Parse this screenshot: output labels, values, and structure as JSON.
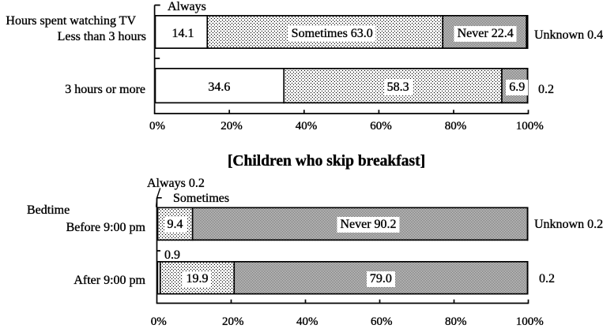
{
  "colors": {
    "ink": "#000000",
    "background": "#ffffff",
    "bar_fill": "#ffffff"
  },
  "series_names": [
    "Always",
    "Sometimes",
    "Never",
    "Unknown"
  ],
  "chart_data": [
    {
      "type": "bar",
      "subtype": "horizontal-100pct-stacked",
      "axis_title": "Hours spent watching TV",
      "categories": [
        "Less than 3 hours",
        "3 hours or more"
      ],
      "xlim": [
        0,
        100
      ],
      "x_tick_labels": [
        "0%",
        "20%",
        "40%",
        "60%",
        "80%",
        "100%"
      ],
      "grid": false,
      "series": [
        {
          "name": "Always",
          "pattern": "white",
          "values": [
            14.1,
            34.6
          ]
        },
        {
          "name": "Sometimes",
          "pattern": "dots-sparse",
          "values": [
            63.0,
            58.3
          ]
        },
        {
          "name": "Never",
          "pattern": "dots-dense",
          "values": [
            22.4,
            6.9
          ]
        },
        {
          "name": "Unknown",
          "pattern": "black",
          "values": [
            0.4,
            0.2
          ]
        }
      ],
      "segment_labels": [
        [
          {
            "seg": 0,
            "text": "14.1",
            "place": "inside",
            "dx": 2.5
          },
          {
            "seg": 1,
            "text": "Sometimes 63.0",
            "place": "inside",
            "dx": 9
          },
          {
            "seg": 2,
            "text": "Never 22.4",
            "place": "inside",
            "dx": 1
          },
          {
            "seg": 3,
            "text": "Unknown 0.4",
            "place": "right"
          }
        ],
        [
          {
            "seg": 0,
            "text": "34.6",
            "place": "inside"
          },
          {
            "seg": 1,
            "text": "58.3",
            "place": "inside",
            "dx": 6.5
          },
          {
            "seg": 2,
            "text": "6.9",
            "place": "inside",
            "dx": 3
          },
          {
            "seg": 3,
            "text": "0.2",
            "place": "right"
          }
        ]
      ],
      "callouts": [
        "Always"
      ]
    },
    {
      "type": "bar",
      "subtype": "horizontal-100pct-stacked",
      "title": "[Children who skip breakfast]",
      "axis_title": "Bedtime",
      "categories": [
        "Before 9:00 pm",
        "After 9:00 pm"
      ],
      "xlim": [
        0,
        100
      ],
      "x_tick_labels": [
        "0%",
        "20%",
        "40%",
        "60%",
        "80%",
        "100%"
      ],
      "grid": false,
      "series": [
        {
          "name": "Always",
          "pattern": "white",
          "values": [
            0.2,
            0.9
          ]
        },
        {
          "name": "Sometimes",
          "pattern": "dots-sparse",
          "values": [
            9.4,
            19.9
          ]
        },
        {
          "name": "Never",
          "pattern": "dots-dense",
          "values": [
            90.2,
            79.0
          ]
        },
        {
          "name": "Unknown",
          "pattern": "black",
          "values": [
            0.2,
            0.2
          ]
        }
      ],
      "segment_labels": [
        [
          {
            "seg": 1,
            "text": "9.4",
            "place": "inside"
          },
          {
            "seg": 2,
            "text": "Never 90.2",
            "place": "inside",
            "dx": 10.4
          },
          {
            "seg": 3,
            "text": "Unknown 0.2",
            "place": "right"
          }
        ],
        [
          {
            "seg": 1,
            "text": "19.9",
            "place": "inside"
          },
          {
            "seg": 2,
            "text": "79.0",
            "place": "inside"
          },
          {
            "seg": 3,
            "text": "0.2",
            "place": "right"
          }
        ]
      ],
      "callouts": [
        "Always 0.2",
        "Sometimes",
        "0.9"
      ]
    }
  ]
}
